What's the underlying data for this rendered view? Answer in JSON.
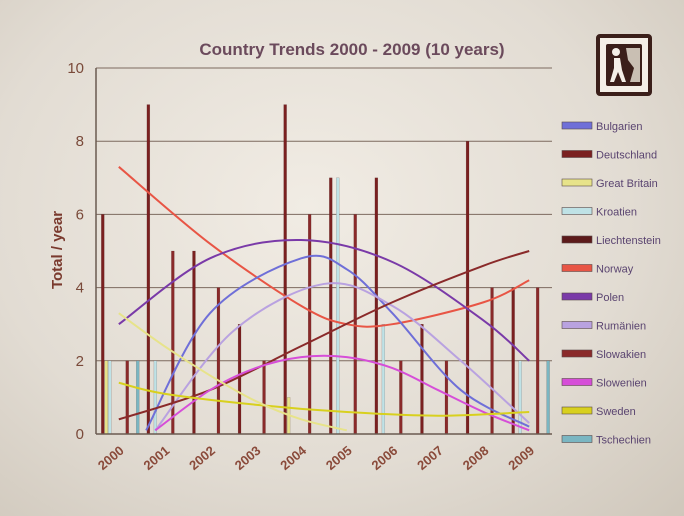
{
  "chart_data": {
    "type": "bar",
    "title": "Country Trends 2000 - 2009 (10 years)",
    "xlabel": "",
    "ylabel": "Total / year",
    "ylim": [
      0,
      10
    ],
    "y_ticks": [
      "0",
      "2",
      "4",
      "6",
      "8",
      "10"
    ],
    "categories": [
      "2000",
      "2001",
      "2002",
      "2003",
      "2004",
      "2005",
      "2006",
      "2007",
      "2008",
      "2009"
    ],
    "grid": "horizontal",
    "legend_position": "right",
    "series": [
      {
        "name": "Bulgarien",
        "color": "#6f6fd8",
        "values": [
          0,
          0,
          0,
          0,
          0,
          0,
          0,
          0,
          0,
          0
        ]
      },
      {
        "name": "Deutschland",
        "color": "#7a2020",
        "values": [
          6,
          9,
          5,
          3,
          9,
          7,
          7,
          3,
          8,
          4
        ]
      },
      {
        "name": "Great Britain",
        "color": "#e7e38a",
        "values": [
          2,
          0,
          0,
          0,
          1,
          0,
          0,
          0,
          0,
          0
        ]
      },
      {
        "name": "Kroatien",
        "color": "#bfe2e6",
        "values": [
          2,
          2,
          0,
          0,
          0,
          7,
          3,
          0,
          0,
          2
        ]
      },
      {
        "name": "Liechtenstein",
        "color": "#5c1a1a",
        "values": [
          0,
          0,
          0,
          0,
          0,
          0,
          0,
          0,
          0,
          0
        ]
      },
      {
        "name": "Norway",
        "color": "#e85545",
        "values": [
          0,
          0,
          0,
          0,
          0,
          0,
          0,
          0,
          0,
          0
        ]
      },
      {
        "name": "Polen",
        "color": "#7a3aa8",
        "values": [
          0,
          0,
          0,
          0,
          0,
          0,
          0,
          0,
          0,
          0
        ]
      },
      {
        "name": "Rumänien",
        "color": "#b9a2e0",
        "values": [
          0,
          0,
          0,
          0,
          0,
          0,
          0,
          0,
          0,
          0
        ]
      },
      {
        "name": "Slowakien",
        "color": "#8a2a2a",
        "values": [
          2,
          5,
          4,
          2,
          6,
          6,
          2,
          2,
          4,
          4
        ]
      },
      {
        "name": "Slowenien",
        "color": "#d64ed8",
        "values": [
          0,
          0,
          0,
          0,
          0,
          0,
          0,
          0,
          0,
          0
        ]
      },
      {
        "name": "Sweden",
        "color": "#d8d01e",
        "values": [
          0,
          0,
          0,
          0,
          0,
          0,
          0,
          0,
          0,
          0
        ]
      },
      {
        "name": "Tschechien",
        "color": "#7ab6c2",
        "values": [
          2,
          0,
          0,
          0,
          0,
          0,
          0,
          0,
          0,
          2
        ]
      }
    ],
    "trendlines": [
      {
        "series": "Norway",
        "color": "#e85545",
        "x": [
          2000,
          2002,
          2004,
          2005,
          2006,
          2008,
          2009
        ],
        "y": [
          7.3,
          5.2,
          3.5,
          3.0,
          3.0,
          3.6,
          4.2
        ]
      },
      {
        "series": "Polen",
        "color": "#7a3aa8",
        "x": [
          2000,
          2002,
          2004,
          2006,
          2008,
          2009
        ],
        "y": [
          3.0,
          4.8,
          5.3,
          4.7,
          3.1,
          2.0
        ]
      },
      {
        "series": "Bulgarien",
        "color": "#6f6fd8",
        "x": [
          2000.6,
          2002,
          2004,
          2005,
          2006,
          2007.5,
          2009
        ],
        "y": [
          0.1,
          3.3,
          4.8,
          4.5,
          3.3,
          1.2,
          0.2
        ]
      },
      {
        "series": "Rumänien",
        "color": "#b9a2e0",
        "x": [
          2000.8,
          2002.5,
          2004.5,
          2006,
          2007.5,
          2009
        ],
        "y": [
          0.1,
          2.8,
          4.1,
          3.5,
          2.0,
          0.3
        ]
      },
      {
        "series": "Slowakien",
        "color": "#8a2a2a",
        "x": [
          2000,
          2002,
          2004,
          2006,
          2008,
          2009
        ],
        "y": [
          0.4,
          1.2,
          2.4,
          3.6,
          4.6,
          5.0
        ]
      },
      {
        "series": "Slowenien",
        "color": "#d64ed8",
        "x": [
          2000.8,
          2002,
          2003,
          2004,
          2005,
          2006,
          2007,
          2008,
          2009
        ],
        "y": [
          0.1,
          1.2,
          1.8,
          2.1,
          2.1,
          1.8,
          1.2,
          0.6,
          0.1
        ]
      },
      {
        "series": "Sweden",
        "color": "#d8d01e",
        "x": [
          2000,
          2001,
          2003,
          2005,
          2007,
          2009
        ],
        "y": [
          1.4,
          1.1,
          0.8,
          0.6,
          0.5,
          0.6
        ]
      },
      {
        "series": "Great Britain",
        "color": "#e7e38a",
        "x": [
          2000,
          2001,
          2002,
          2003,
          2004,
          2005
        ],
        "y": [
          3.3,
          2.4,
          1.6,
          0.9,
          0.4,
          0.1
        ]
      }
    ]
  }
}
